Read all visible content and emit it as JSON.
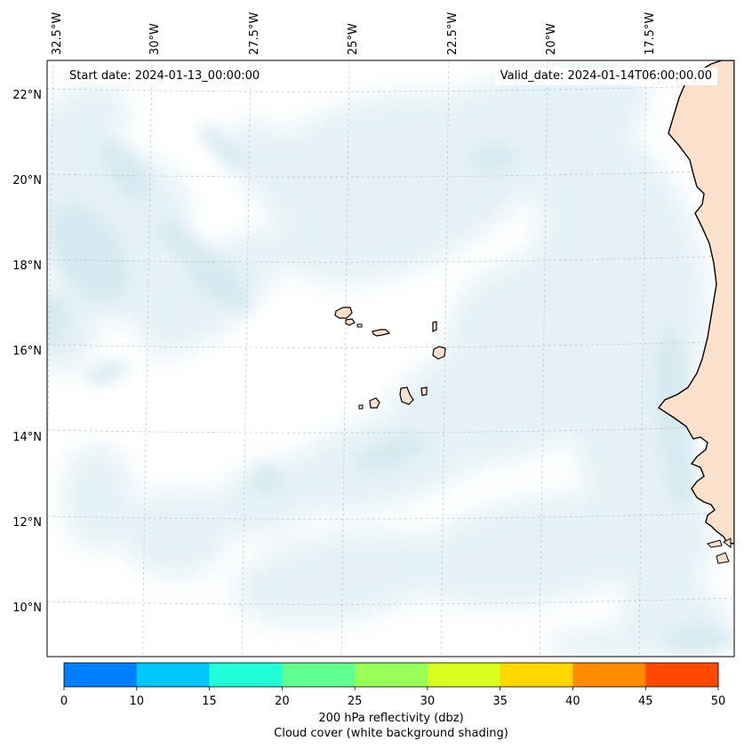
{
  "header": {
    "start_date": "Start date: 2024-01-13_00:00:00",
    "valid_date": "Valid_date: 2024-01-14T06:00:00.00"
  },
  "map": {
    "longitude_labels": [
      "32.5°W",
      "30°W",
      "27.5°W",
      "25°W",
      "22.5°W",
      "20°W",
      "17.5°W"
    ],
    "latitude_labels": [
      "22°N",
      "20°N",
      "18°N",
      "16°N",
      "14°N",
      "12°N",
      "10°N"
    ],
    "cloud_color": "#cfe6ee",
    "land_color": "#fbe0cc",
    "coastline_color": "#000000",
    "gridline_color": "#bbbbbb"
  },
  "colorbar": {
    "ticks": [
      "0",
      "10",
      "15",
      "20",
      "25",
      "30",
      "35",
      "40",
      "45",
      "50"
    ],
    "colors": [
      "#0080ff",
      "#00c8ff",
      "#20ffd8",
      "#60ff90",
      "#98ff58",
      "#d8ff20",
      "#ffd800",
      "#ff8c00",
      "#ff4800"
    ],
    "label_line1": "200 hPa reflectivity (dbz)",
    "label_line2": "Cloud cover (white background shading)"
  }
}
